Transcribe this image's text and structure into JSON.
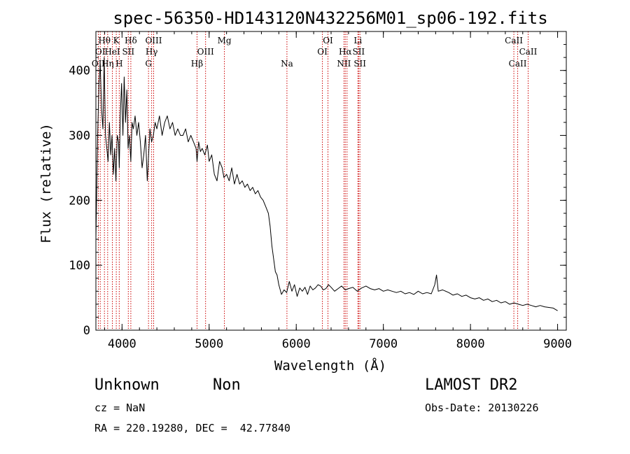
{
  "colors": {
    "spectrum": "#000000",
    "line_marker": "#cc0000",
    "axes": "#000000",
    "background": "#ffffff"
  },
  "chart_data": {
    "type": "line",
    "title": "spec-56350-HD143120N432256M01_sp06-192.fits",
    "xlabel": "Wavelength (Å)",
    "ylabel": "Flux (relative)",
    "xlim": [
      3700,
      9100
    ],
    "ylim": [
      0,
      460
    ],
    "xticks": [
      4000,
      5000,
      6000,
      7000,
      8000,
      9000
    ],
    "yticks": [
      0,
      100,
      200,
      300,
      400
    ],
    "grid": false,
    "series": [
      {
        "x": [
          3700,
          3720,
          3735,
          3750,
          3765,
          3780,
          3795,
          3810,
          3825,
          3840,
          3855,
          3870,
          3885,
          3900,
          3915,
          3930,
          3945,
          3960,
          3968,
          3980,
          3995,
          4010,
          4025,
          4040,
          4055,
          4070,
          4085,
          4101,
          4115,
          4130,
          4150,
          4170,
          4190,
          4210,
          4230,
          4250,
          4270,
          4290,
          4305,
          4320,
          4340,
          4360,
          4380,
          4400,
          4430,
          4460,
          4490,
          4520,
          4550,
          4580,
          4610,
          4640,
          4670,
          4700,
          4730,
          4760,
          4790,
          4820,
          4850,
          4861,
          4880,
          4900,
          4920,
          4950,
          4980,
          5000,
          5030,
          5060,
          5090,
          5120,
          5150,
          5170,
          5200,
          5230,
          5260,
          5290,
          5320,
          5350,
          5380,
          5410,
          5440,
          5470,
          5500,
          5530,
          5560,
          5590,
          5620,
          5650,
          5680,
          5700,
          5720,
          5740,
          5760,
          5780,
          5800,
          5830,
          5860,
          5890,
          5920,
          5950,
          5980,
          6010,
          6040,
          6070,
          6100,
          6130,
          6160,
          6190,
          6220,
          6250,
          6280,
          6310,
          6340,
          6370,
          6400,
          6440,
          6480,
          6520,
          6563,
          6600,
          6650,
          6700,
          6750,
          6800,
          6850,
          6900,
          6950,
          7000,
          7050,
          7100,
          7150,
          7200,
          7250,
          7300,
          7350,
          7400,
          7450,
          7500,
          7550,
          7590,
          7610,
          7630,
          7680,
          7750,
          7800,
          7850,
          7900,
          7950,
          8000,
          8050,
          8100,
          8150,
          8200,
          8250,
          8300,
          8350,
          8400,
          8450,
          8500,
          8550,
          8600,
          8650,
          8700,
          8750,
          8800,
          8850,
          8900,
          8950,
          9000
        ],
        "y": [
          140,
          300,
          380,
          410,
          340,
          310,
          420,
          300,
          280,
          260,
          320,
          270,
          300,
          240,
          280,
          230,
          300,
          290,
          250,
          330,
          380,
          300,
          390,
          320,
          370,
          280,
          300,
          260,
          320,
          310,
          330,
          300,
          320,
          290,
          250,
          270,
          300,
          230,
          270,
          310,
          290,
          300,
          320,
          310,
          330,
          300,
          320,
          330,
          310,
          320,
          300,
          310,
          300,
          300,
          310,
          290,
          300,
          290,
          280,
          260,
          290,
          275,
          280,
          270,
          285,
          260,
          270,
          240,
          230,
          260,
          250,
          235,
          240,
          230,
          250,
          225,
          240,
          225,
          230,
          220,
          225,
          215,
          220,
          210,
          215,
          205,
          200,
          190,
          180,
          160,
          130,
          110,
          90,
          85,
          70,
          55,
          62,
          58,
          75,
          60,
          70,
          52,
          65,
          60,
          66,
          55,
          68,
          62,
          65,
          70,
          68,
          62,
          64,
          70,
          66,
          60,
          64,
          68,
          62,
          64,
          66,
          60,
          65,
          68,
          64,
          62,
          64,
          60,
          62,
          60,
          58,
          60,
          56,
          58,
          55,
          60,
          56,
          58,
          56,
          70,
          85,
          60,
          62,
          58,
          54,
          56,
          52,
          54,
          50,
          48,
          50,
          46,
          48,
          44,
          46,
          42,
          44,
          40,
          42,
          40,
          38,
          40,
          38,
          36,
          38,
          36,
          35,
          34,
          30
        ]
      }
    ],
    "line_markers": [
      {
        "wave": 3728,
        "label": "OII",
        "row": 3
      },
      {
        "wave": 3750,
        "label": "OI",
        "row": 2
      },
      {
        "wave": 3798,
        "label": "Hθ",
        "row": 1
      },
      {
        "wave": 3835,
        "label": "Hη",
        "row": 3
      },
      {
        "wave": 3889,
        "label": "HeI",
        "row": 2
      },
      {
        "wave": 3934,
        "label": "K",
        "row": 1
      },
      {
        "wave": 3968,
        "label": "H",
        "row": 3
      },
      {
        "wave": 4072,
        "label": "SII",
        "row": 2
      },
      {
        "wave": 4101,
        "label": "Hδ",
        "row": 1
      },
      {
        "wave": 4304,
        "label": "G",
        "row": 3
      },
      {
        "wave": 4340,
        "label": "Hγ",
        "row": 2
      },
      {
        "wave": 4363,
        "label": "OIII",
        "row": 1
      },
      {
        "wave": 4861,
        "label": "Hβ",
        "row": 3
      },
      {
        "wave": 4959,
        "label": "OIII",
        "row": 2
      },
      {
        "wave": 5175,
        "label": "Mg",
        "row": 1
      },
      {
        "wave": 5893,
        "label": "Na",
        "row": 3
      },
      {
        "wave": 6300,
        "label": "OI",
        "row": 2
      },
      {
        "wave": 6364,
        "label": "OI",
        "row": 1
      },
      {
        "wave": 6548,
        "label": "NII",
        "row": 3
      },
      {
        "wave": 6563,
        "label": "Hα",
        "row": 2
      },
      {
        "wave": 6583,
        "label": "",
        "row": 0
      },
      {
        "wave": 6708,
        "label": "Li",
        "row": 1
      },
      {
        "wave": 6716,
        "label": "SII",
        "row": 2
      },
      {
        "wave": 6731,
        "label": "SII",
        "row": 3
      },
      {
        "wave": 8498,
        "label": "CaII",
        "row": 1
      },
      {
        "wave": 8542,
        "label": "CaII",
        "row": 3
      },
      {
        "wave": 8662,
        "label": "CaII",
        "row": 2
      }
    ]
  },
  "footer": {
    "object_name": "Unknown",
    "object_class": "Non",
    "survey": "LAMOST DR2",
    "redshift_text": "cz = NaN",
    "obs_date_text": "Obs-Date: 20130226",
    "coords_text": "RA = 220.19280, DEC =  42.77840"
  }
}
